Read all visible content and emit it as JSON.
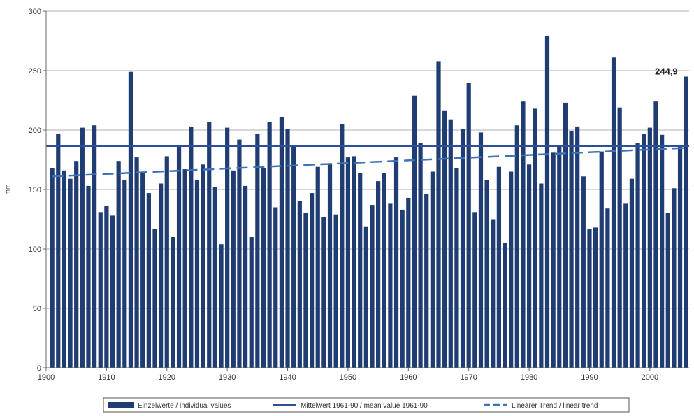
{
  "chart_data": {
    "type": "bar",
    "ylabel": "mm",
    "xlabel": "",
    "ylim": [
      0,
      300
    ],
    "yticks": [
      0,
      50,
      100,
      150,
      200,
      250,
      300
    ],
    "xticks": [
      1900,
      1910,
      1920,
      1930,
      1940,
      1950,
      1960,
      1970,
      1980,
      1990,
      2000
    ],
    "grid": true,
    "legend_position": "bottom",
    "colors": {
      "bar": "#1f3d73",
      "mean": "#2d4f9a",
      "trend": "#3d72b8",
      "grid": "#b0b0b0"
    },
    "annotation": {
      "text": "244,9",
      "x": 2006,
      "y": 244.9
    },
    "series": [
      {
        "name": "Einzelwerte / individual values",
        "x": [
          1901,
          1902,
          1903,
          1904,
          1905,
          1906,
          1907,
          1908,
          1909,
          1910,
          1911,
          1912,
          1913,
          1914,
          1915,
          1916,
          1917,
          1918,
          1919,
          1920,
          1921,
          1922,
          1923,
          1924,
          1925,
          1926,
          1927,
          1928,
          1929,
          1930,
          1931,
          1932,
          1933,
          1934,
          1935,
          1936,
          1937,
          1938,
          1939,
          1940,
          1941,
          1942,
          1943,
          1944,
          1945,
          1946,
          1947,
          1948,
          1949,
          1950,
          1951,
          1952,
          1953,
          1954,
          1955,
          1956,
          1957,
          1958,
          1959,
          1960,
          1961,
          1962,
          1963,
          1964,
          1965,
          1966,
          1967,
          1968,
          1969,
          1970,
          1971,
          1972,
          1973,
          1974,
          1975,
          1976,
          1977,
          1978,
          1979,
          1980,
          1981,
          1982,
          1983,
          1984,
          1985,
          1986,
          1987,
          1988,
          1989,
          1990,
          1991,
          1992,
          1993,
          1994,
          1995,
          1996,
          1997,
          1998,
          1999,
          2000,
          2001,
          2002,
          2003,
          2004,
          2005,
          2006
        ],
        "values": [
          168,
          197,
          166,
          159,
          174,
          202,
          153,
          204,
          131,
          136,
          128,
          174,
          158,
          249,
          177,
          164,
          147,
          117,
          155,
          178,
          110,
          186,
          167,
          203,
          158,
          171,
          207,
          152,
          104,
          202,
          166,
          192,
          153,
          110,
          197,
          168,
          207,
          135,
          211,
          201,
          186,
          140,
          130,
          147,
          169,
          127,
          172,
          129,
          205,
          177,
          178,
          164,
          119,
          137,
          157,
          164,
          138,
          177,
          133,
          143,
          229,
          189,
          146,
          165,
          258,
          216,
          209,
          168,
          201,
          240,
          131,
          198,
          158,
          125,
          169,
          105,
          165,
          204,
          224,
          171,
          218,
          155,
          279,
          181,
          186,
          223,
          199,
          203,
          161,
          117,
          118,
          182,
          134,
          261,
          219,
          138,
          159,
          189,
          197,
          202,
          224,
          196,
          130,
          151,
          186,
          245
        ]
      },
      {
        "name": "Mittelwert 1961-90 / mean value 1961-90",
        "value": 186.5
      },
      {
        "name": "Linearer Trend / linear trend",
        "start": [
          1901,
          161
        ],
        "end": [
          2006,
          185
        ]
      }
    ]
  }
}
